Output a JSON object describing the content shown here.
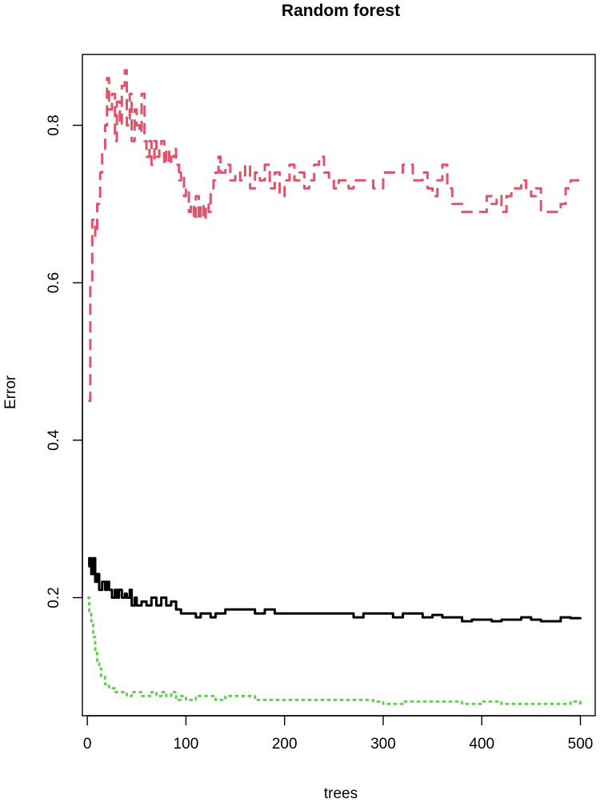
{
  "chart_data": {
    "type": "line",
    "title": "Random forest",
    "xlabel": "trees",
    "ylabel": "Error",
    "xlim": [
      -5,
      515
    ],
    "ylim": [
      0.05,
      0.89
    ],
    "x_ticks": [
      0,
      100,
      200,
      300,
      400,
      500
    ],
    "x_tick_labels": [
      "0",
      "100",
      "200",
      "300",
      "400",
      "500"
    ],
    "y_ticks": [
      0.2,
      0.4,
      0.6,
      0.8
    ],
    "y_tick_labels": [
      "0.2",
      "0.4",
      "0.6",
      "0.8"
    ],
    "grid": false,
    "legend": "none",
    "series": [
      {
        "color": "#df536b",
        "line_style": "dashed",
        "x": [
          1,
          3,
          5,
          8,
          10,
          13,
          15,
          18,
          20,
          22,
          25,
          28,
          30,
          33,
          35,
          38,
          40,
          43,
          45,
          48,
          50,
          53,
          55,
          58,
          60,
          63,
          65,
          68,
          70,
          73,
          75,
          78,
          80,
          83,
          85,
          88,
          90,
          93,
          95,
          98,
          100,
          103,
          105,
          108,
          110,
          113,
          115,
          118,
          120,
          123,
          125,
          128,
          130,
          133,
          135,
          140,
          145,
          150,
          155,
          160,
          165,
          170,
          175,
          180,
          185,
          190,
          195,
          200,
          205,
          210,
          215,
          220,
          225,
          230,
          235,
          240,
          245,
          250,
          255,
          260,
          265,
          270,
          280,
          290,
          300,
          310,
          320,
          330,
          340,
          345,
          350,
          355,
          360,
          365,
          370,
          380,
          390,
          400,
          405,
          410,
          415,
          420,
          425,
          430,
          435,
          440,
          445,
          450,
          455,
          460,
          470,
          480,
          485,
          490,
          500
        ],
        "values": [
          0.45,
          0.6,
          0.68,
          0.66,
          0.7,
          0.74,
          0.77,
          0.8,
          0.86,
          0.82,
          0.84,
          0.78,
          0.83,
          0.8,
          0.85,
          0.87,
          0.8,
          0.84,
          0.78,
          0.82,
          0.8,
          0.79,
          0.84,
          0.78,
          0.76,
          0.78,
          0.75,
          0.78,
          0.76,
          0.77,
          0.78,
          0.75,
          0.77,
          0.75,
          0.76,
          0.77,
          0.75,
          0.73,
          0.74,
          0.71,
          0.72,
          0.69,
          0.7,
          0.68,
          0.71,
          0.68,
          0.7,
          0.68,
          0.7,
          0.69,
          0.72,
          0.73,
          0.74,
          0.76,
          0.74,
          0.75,
          0.73,
          0.74,
          0.73,
          0.75,
          0.72,
          0.74,
          0.73,
          0.75,
          0.72,
          0.74,
          0.71,
          0.73,
          0.75,
          0.73,
          0.74,
          0.72,
          0.73,
          0.75,
          0.76,
          0.74,
          0.73,
          0.72,
          0.73,
          0.73,
          0.72,
          0.73,
          0.73,
          0.72,
          0.74,
          0.74,
          0.75,
          0.73,
          0.74,
          0.72,
          0.71,
          0.73,
          0.75,
          0.72,
          0.7,
          0.69,
          0.69,
          0.69,
          0.71,
          0.7,
          0.71,
          0.69,
          0.71,
          0.72,
          0.72,
          0.73,
          0.72,
          0.71,
          0.72,
          0.69,
          0.69,
          0.7,
          0.72,
          0.73,
          0.73
        ]
      },
      {
        "color": "#000000",
        "line_style": "solid",
        "x": [
          1,
          2,
          4,
          6,
          8,
          10,
          12,
          15,
          18,
          20,
          22,
          25,
          28,
          30,
          32,
          35,
          38,
          40,
          43,
          45,
          48,
          50,
          55,
          60,
          65,
          70,
          75,
          80,
          85,
          90,
          95,
          100,
          105,
          110,
          115,
          120,
          125,
          130,
          140,
          150,
          160,
          170,
          180,
          190,
          200,
          210,
          220,
          230,
          240,
          250,
          260,
          270,
          280,
          290,
          300,
          310,
          320,
          330,
          340,
          350,
          360,
          370,
          380,
          390,
          400,
          410,
          420,
          430,
          440,
          450,
          460,
          470,
          480,
          490,
          500
        ],
        "values": [
          0.24,
          0.25,
          0.23,
          0.25,
          0.22,
          0.23,
          0.21,
          0.22,
          0.21,
          0.22,
          0.21,
          0.2,
          0.21,
          0.2,
          0.21,
          0.2,
          0.205,
          0.2,
          0.21,
          0.19,
          0.2,
          0.19,
          0.195,
          0.19,
          0.2,
          0.19,
          0.2,
          0.19,
          0.195,
          0.185,
          0.18,
          0.18,
          0.18,
          0.175,
          0.18,
          0.18,
          0.175,
          0.18,
          0.185,
          0.185,
          0.185,
          0.18,
          0.185,
          0.18,
          0.18,
          0.18,
          0.18,
          0.18,
          0.18,
          0.18,
          0.18,
          0.175,
          0.18,
          0.18,
          0.18,
          0.175,
          0.18,
          0.18,
          0.175,
          0.178,
          0.175,
          0.175,
          0.17,
          0.172,
          0.172,
          0.17,
          0.172,
          0.172,
          0.175,
          0.172,
          0.17,
          0.17,
          0.175,
          0.174,
          0.175
        ]
      },
      {
        "color": "#61d04f",
        "line_style": "dotted",
        "x": [
          1,
          2,
          4,
          6,
          8,
          10,
          12,
          14,
          16,
          18,
          20,
          22,
          25,
          28,
          30,
          35,
          40,
          45,
          50,
          55,
          60,
          65,
          70,
          75,
          80,
          85,
          90,
          95,
          100,
          110,
          120,
          130,
          140,
          150,
          160,
          170,
          180,
          190,
          200,
          220,
          240,
          260,
          280,
          290,
          300,
          320,
          340,
          360,
          380,
          400,
          420,
          440,
          460,
          480,
          490,
          500
        ],
        "values": [
          0.2,
          0.18,
          0.17,
          0.15,
          0.13,
          0.12,
          0.11,
          0.1,
          0.1,
          0.09,
          0.09,
          0.085,
          0.085,
          0.08,
          0.08,
          0.08,
          0.075,
          0.08,
          0.08,
          0.075,
          0.075,
          0.08,
          0.075,
          0.08,
          0.075,
          0.08,
          0.07,
          0.075,
          0.07,
          0.075,
          0.075,
          0.07,
          0.075,
          0.075,
          0.075,
          0.07,
          0.07,
          0.07,
          0.07,
          0.07,
          0.07,
          0.07,
          0.07,
          0.068,
          0.065,
          0.068,
          0.068,
          0.068,
          0.065,
          0.068,
          0.065,
          0.065,
          0.065,
          0.065,
          0.068,
          0.065
        ]
      }
    ]
  }
}
